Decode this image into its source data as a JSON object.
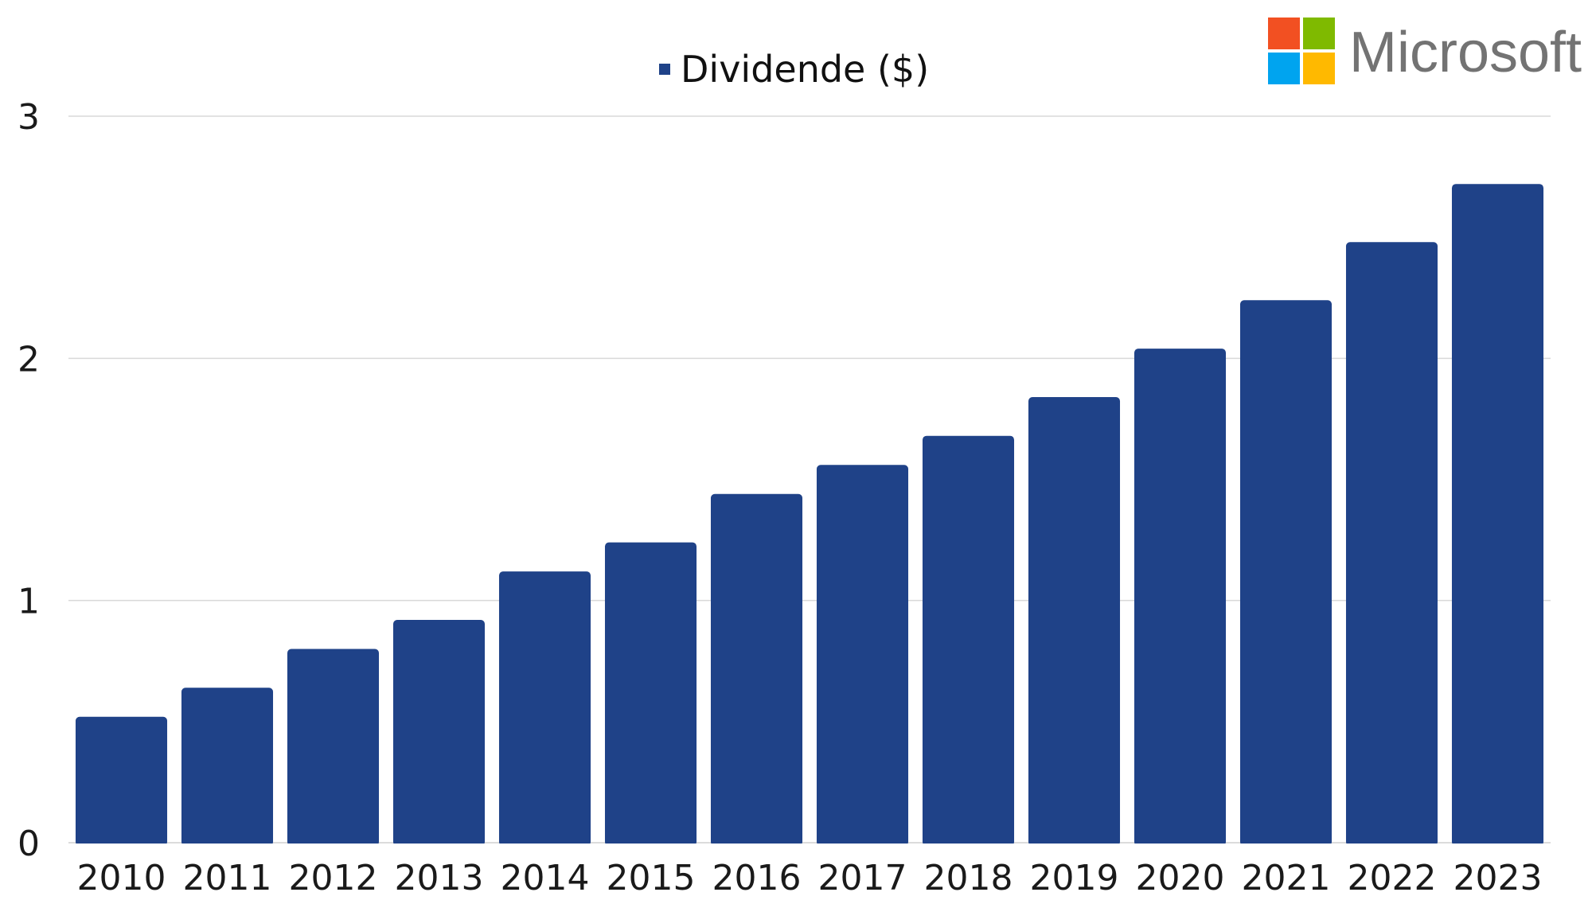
{
  "brand": {
    "name": "Microsoft",
    "colors": [
      "#F25022",
      "#7FBA00",
      "#00A4EF",
      "#FFB900"
    ]
  },
  "chart_data": {
    "type": "bar",
    "categories": [
      "2010",
      "2011",
      "2012",
      "2013",
      "2014",
      "2015",
      "2016",
      "2017",
      "2018",
      "2019",
      "2020",
      "2021",
      "2022",
      "2023"
    ],
    "series": [
      {
        "name": "Dividende ($)",
        "color": "#1F4288",
        "values": [
          0.52,
          0.64,
          0.8,
          0.92,
          1.12,
          1.24,
          1.44,
          1.56,
          1.68,
          1.84,
          2.04,
          2.24,
          2.48,
          2.72
        ]
      }
    ],
    "yticks": [
      "0",
      "1",
      "2",
      "3"
    ],
    "ylim": [
      0,
      3
    ],
    "grid": true,
    "legend": "top-center",
    "gridColor": "#d9d9d9"
  }
}
